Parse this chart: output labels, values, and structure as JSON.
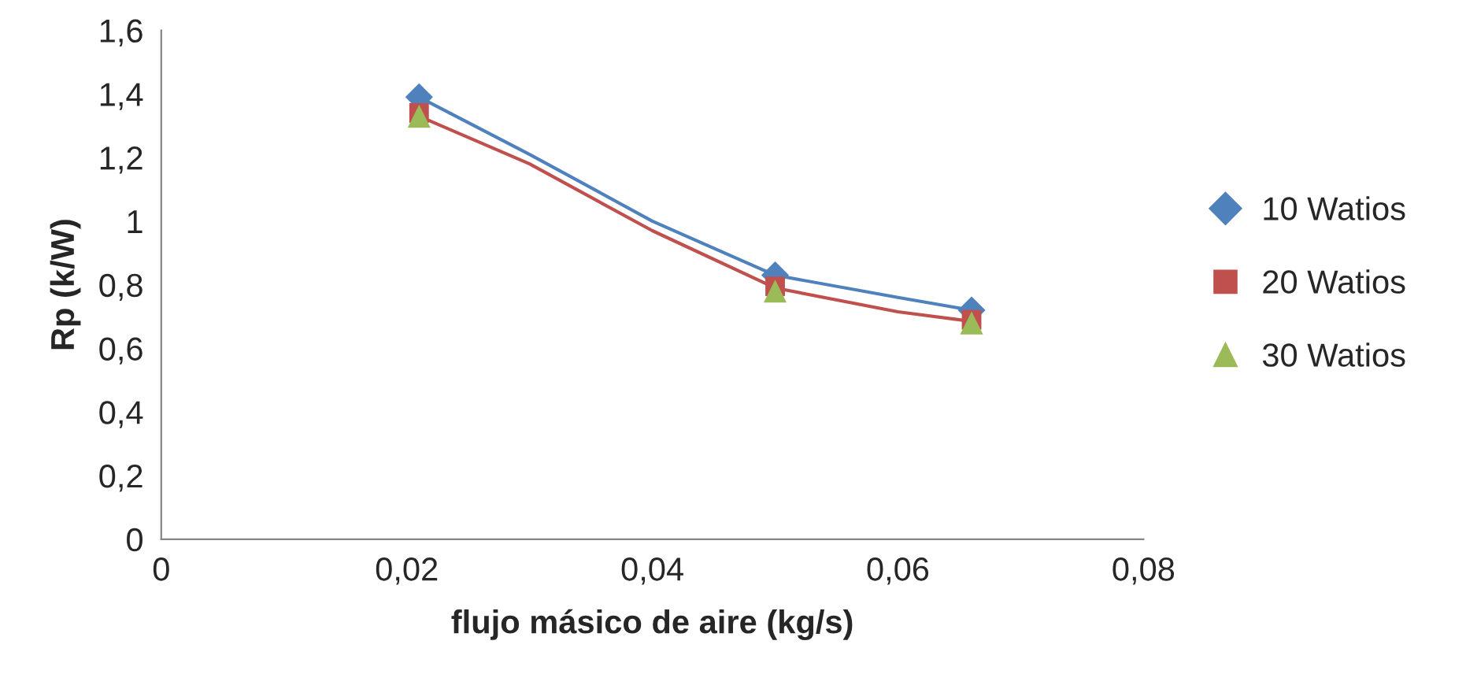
{
  "chart_data": {
    "type": "scatter",
    "xlabel": "flujo másico de aire (kg/s)",
    "ylabel": "Rp (k/W)",
    "x": [
      0.021,
      0.05,
      0.066
    ],
    "series": [
      {
        "name": "10 Watios",
        "color": "#4f81bd",
        "marker": "diamond",
        "values": [
          1.39,
          0.83,
          0.72
        ]
      },
      {
        "name": "20 Watios",
        "color": "#c0504d",
        "marker": "square",
        "values": [
          1.34,
          0.795,
          0.69
        ]
      },
      {
        "name": "30 Watios",
        "color": "#9bbb59",
        "marker": "triangle",
        "values": [
          1.33,
          0.78,
          0.68
        ]
      },
      {
        "type": "line",
        "color": "#4f81bd",
        "marker": "none",
        "x": [
          0.021,
          0.03,
          0.04,
          0.05,
          0.06,
          0.066
        ],
        "values": [
          1.39,
          1.21,
          1.0,
          0.83,
          0.76,
          0.72
        ]
      },
      {
        "type": "line",
        "color": "#c0504d",
        "marker": "none",
        "x": [
          0.021,
          0.03,
          0.04,
          0.05,
          0.06,
          0.066
        ],
        "values": [
          1.33,
          1.18,
          0.97,
          0.79,
          0.715,
          0.685
        ]
      }
    ],
    "xlim": [
      0,
      0.08
    ],
    "xticks": [
      {
        "value": 0,
        "label": "0"
      },
      {
        "value": 0.02,
        "label": "0,02"
      },
      {
        "value": 0.04,
        "label": "0,04"
      },
      {
        "value": 0.06,
        "label": "0,06"
      },
      {
        "value": 0.08,
        "label": "0,08"
      }
    ],
    "ylim": [
      0,
      1.6
    ],
    "yticks": [
      {
        "value": 0,
        "label": "0"
      },
      {
        "value": 0.2,
        "label": "0,2"
      },
      {
        "value": 0.4,
        "label": "0,4"
      },
      {
        "value": 0.6,
        "label": "0,6"
      },
      {
        "value": 0.8,
        "label": "0,8"
      },
      {
        "value": 1,
        "label": "1"
      },
      {
        "value": 1.2,
        "label": "1,2"
      },
      {
        "value": 1.4,
        "label": "1,4"
      },
      {
        "value": 1.6,
        "label": "1,6"
      }
    ],
    "grid": false,
    "legend": "right"
  }
}
